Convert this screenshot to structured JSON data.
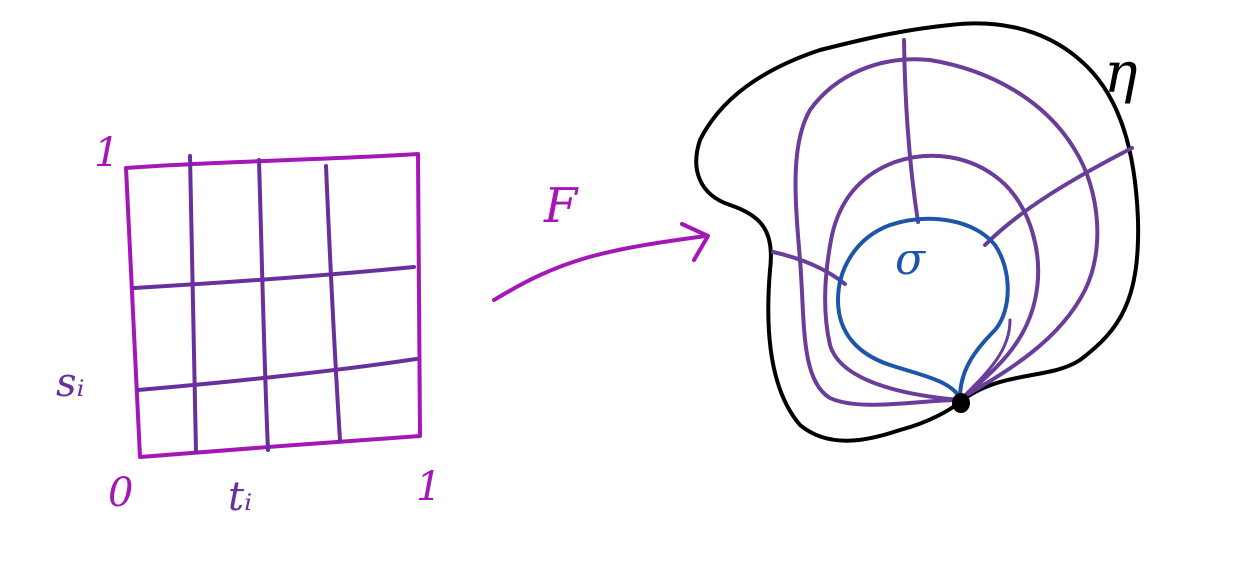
{
  "labels": {
    "square_top_left": "1",
    "square_bottom_left": "0",
    "square_bottom_right": "1",
    "s_i": "sᵢ",
    "t_i": "tᵢ",
    "map_label": "F",
    "inner_loop": "σ",
    "outer_loop": "η"
  },
  "colors": {
    "square": "#a516b8",
    "grid": "#6a2f9c",
    "arrow": "#a516b8",
    "outer_loop": "#000000",
    "homotopy_curves": "#6a3d9a",
    "inner_loop": "#1d56a8",
    "base_point": "#000000"
  }
}
